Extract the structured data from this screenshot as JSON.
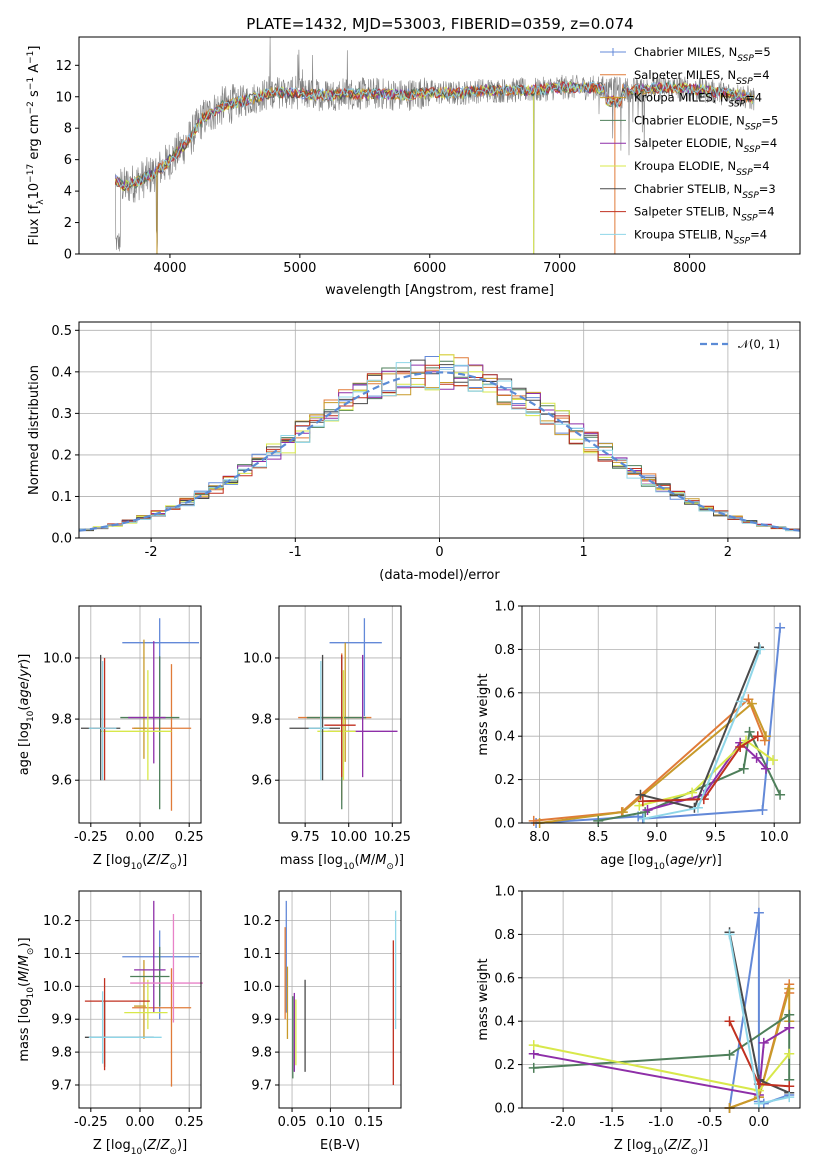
{
  "title": "PLATE=1432, MJD=53003, FIBERID=0359, z=0.074",
  "colors": [
    "#6389d8",
    "#e07b39",
    "#c89a2a",
    "#4e7f5a",
    "#8e2fa8",
    "#d8e84a",
    "#4a4a4a",
    "#c03020",
    "#8fd6e8"
  ],
  "series": [
    {
      "name": "Chabrier MILES, N",
      "n": "5",
      "color": "#6389d8"
    },
    {
      "name": "Salpeter MILES, N",
      "n": "4",
      "color": "#e07b39"
    },
    {
      "name": "Kroupa MILES, N",
      "n": "4",
      "color": "#c89a2a"
    },
    {
      "name": "Chabrier ELODIE, N",
      "n": "5",
      "color": "#4e7f5a"
    },
    {
      "name": "Salpeter ELODIE, N",
      "n": "4",
      "color": "#8e2fa8"
    },
    {
      "name": "Kroupa ELODIE, N",
      "n": "4",
      "color": "#d8e84a"
    },
    {
      "name": "Chabrier STELIB, N",
      "n": "3",
      "color": "#4a4a4a"
    },
    {
      "name": "Salpeter STELIB, N",
      "n": "4",
      "color": "#c03020"
    },
    {
      "name": "Kroupa STELIB, N",
      "n": "4",
      "color": "#8fd6e8"
    }
  ],
  "chart_data": [
    {
      "id": "spectrum",
      "type": "line",
      "xlabel": "wavelength [Angstrom, rest frame]",
      "ylabel": "Flux [f",
      "xlim": [
        3300,
        8850
      ],
      "ylim": [
        0,
        13.8
      ],
      "xticks": [
        4000,
        5000,
        6000,
        7000,
        8000
      ],
      "yticks": [
        0,
        2,
        4,
        6,
        8,
        10,
        12
      ],
      "data_color": "#808080",
      "continuum_x": [
        3580,
        3650,
        3750,
        3850,
        3950,
        4050,
        4150,
        4250,
        4400,
        4600,
        4800,
        5000,
        5200,
        5400,
        5600,
        5800,
        6000,
        6200,
        6400,
        6600,
        6800,
        7000,
        7200,
        7400,
        7600,
        7800,
        8000,
        8200,
        8400,
        8500
      ],
      "continuum_y": [
        4.7,
        4.3,
        4.6,
        5.0,
        5.6,
        6.4,
        7.3,
        8.6,
        9.4,
        9.8,
        10.3,
        10.2,
        10.1,
        10.2,
        10.2,
        10.1,
        10.3,
        10.2,
        10.4,
        10.4,
        10.4,
        10.6,
        10.6,
        10.5,
        10.4,
        10.6,
        10.5,
        10.3,
        10.1,
        9.8
      ]
    },
    {
      "id": "residual_hist",
      "type": "step",
      "xlabel": "(data-model)/error",
      "ylabel": "Normed distribution",
      "xlim": [
        -2.5,
        2.5
      ],
      "ylim": [
        0,
        0.52
      ],
      "xticks": [
        -2,
        -1,
        0,
        1,
        2
      ],
      "yticks": [
        0.0,
        0.1,
        0.2,
        0.3,
        0.4,
        0.5
      ],
      "gaussian_label": "𝒩(0, 1)",
      "gaussian_color": "#5b8bd6",
      "bin_width": 0.1
    },
    {
      "id": "age_vs_Z",
      "type": "errorbar",
      "xlabel": "Z [log",
      "ylabel": "age  [log",
      "xlim": [
        -0.31,
        0.31
      ],
      "ylim": [
        9.46,
        10.17
      ],
      "xticks": [
        -0.25,
        0.0,
        0.25
      ],
      "yticks": [
        9.6,
        9.8,
        10.0
      ],
      "points": [
        {
          "x": 0.1,
          "y": 10.05,
          "xerr": [
            0.19,
            0.2
          ],
          "yerr": [
            0.24,
            0.08
          ]
        },
        {
          "x": 0.16,
          "y": 9.77,
          "xerr": [
            0.2,
            0.1
          ],
          "yerr": [
            0.27,
            0.21
          ]
        },
        {
          "x": 0.02,
          "y": 9.77,
          "xerr": [
            0.05,
            0.01
          ],
          "yerr": [
            0.1,
            0.29
          ]
        },
        {
          "x": 0.1,
          "y": 9.805,
          "xerr": [
            0.2,
            0.1
          ],
          "yerr": [
            0.3,
            0.2
          ]
        },
        {
          "x": 0.07,
          "y": 9.805,
          "xerr": [
            0.13,
            0.06
          ],
          "yerr": [
            0.15,
            0.25
          ]
        },
        {
          "x": 0.04,
          "y": 9.76,
          "xerr": [
            0.24,
            0.12
          ],
          "yerr": [
            0.16,
            0.2
          ]
        },
        {
          "x": -0.2,
          "y": 9.77,
          "xerr": [
            0.1,
            0.1
          ],
          "yerr": [
            0.17,
            0.24
          ]
        },
        {
          "x": -0.18,
          "y": 9.77,
          "xerr": [
            0.06,
            0.05
          ],
          "yerr": [
            0.17,
            0.23
          ]
        },
        {
          "x": -0.19,
          "y": 9.77,
          "xerr": [
            0.07,
            0.07
          ],
          "yerr": [
            0.17,
            0.22
          ]
        }
      ]
    },
    {
      "id": "age_vs_mass",
      "type": "errorbar",
      "xlabel": "mass [log",
      "ylabel": "",
      "xlim": [
        9.6,
        10.3
      ],
      "ylim": [
        9.46,
        10.17
      ],
      "xticks": [
        9.75,
        10.0,
        10.25
      ],
      "yticks": [
        9.6,
        9.8,
        10.0
      ],
      "points": [
        {
          "x": 10.09,
          "y": 10.05,
          "xerr": [
            0.2,
            0.1
          ],
          "yerr": [
            0.24,
            0.08
          ]
        },
        {
          "x": 9.96,
          "y": 9.805,
          "xerr": [
            0.25,
            0.17
          ],
          "yerr": [
            0.27,
            0.21
          ]
        },
        {
          "x": 9.98,
          "y": 9.76,
          "xerr": [
            0.03,
            0.03
          ],
          "yerr": [
            0.1,
            0.29
          ]
        },
        {
          "x": 9.96,
          "y": 9.805,
          "xerr": [
            0.2,
            0.14
          ],
          "yerr": [
            0.3,
            0.2
          ]
        },
        {
          "x": 10.08,
          "y": 9.76,
          "xerr": [
            0.2,
            0.2
          ],
          "yerr": [
            0.15,
            0.25
          ]
        },
        {
          "x": 9.97,
          "y": 9.76,
          "xerr": [
            0.15,
            0.07
          ],
          "yerr": [
            0.16,
            0.2
          ]
        },
        {
          "x": 9.85,
          "y": 9.77,
          "xerr": [
            0.19,
            0.1
          ],
          "yerr": [
            0.17,
            0.24
          ]
        },
        {
          "x": 9.96,
          "y": 9.78,
          "xerr": [
            0.1,
            0.08
          ],
          "yerr": [
            0.17,
            0.23
          ]
        },
        {
          "x": 9.84,
          "y": 9.77,
          "xerr": [
            0.07,
            0.05
          ],
          "yerr": [
            0.17,
            0.22
          ]
        }
      ]
    },
    {
      "id": "massweight_vs_age",
      "type": "line",
      "xlabel": "age  [log",
      "ylabel": "mass weight",
      "xlim": [
        7.85,
        10.22
      ],
      "ylim": [
        0,
        1.0
      ],
      "xticks": [
        8.0,
        8.5,
        9.0,
        9.5,
        10.0
      ],
      "yticks": [
        0.0,
        0.2,
        0.4,
        0.6,
        0.8,
        1.0
      ],
      "series": [
        {
          "x": [
            7.97,
            8.84,
            8.88,
            9.9,
            10.05
          ],
          "y": [
            0.0,
            0.03,
            0.02,
            0.06,
            0.9
          ]
        },
        {
          "x": [
            7.95,
            8.7,
            9.78,
            9.92
          ],
          "y": [
            0.01,
            0.05,
            0.57,
            0.38
          ]
        },
        {
          "x": [
            8.0,
            8.71,
            9.81,
            9.93
          ],
          "y": [
            0.0,
            0.05,
            0.55,
            0.4
          ]
        },
        {
          "x": [
            8.5,
            8.9,
            9.74,
            9.79,
            10.05
          ],
          "y": [
            0.01,
            0.05,
            0.25,
            0.42,
            0.13
          ]
        },
        {
          "x": [
            8.92,
            9.4,
            9.71,
            9.85,
            9.93
          ],
          "y": [
            0.06,
            0.13,
            0.37,
            0.3,
            0.25
          ]
        },
        {
          "x": [
            8.85,
            9.3,
            9.76,
            9.99
          ],
          "y": [
            0.08,
            0.14,
            0.38,
            0.29
          ]
        },
        {
          "x": [
            8.86,
            9.32,
            9.87
          ],
          "y": [
            0.13,
            0.07,
            0.81
          ]
        },
        {
          "x": [
            8.88,
            9.4,
            9.71,
            9.86
          ],
          "y": [
            0.1,
            0.11,
            0.35,
            0.4
          ]
        },
        {
          "x": [
            8.89,
            9.35,
            9.72,
            9.88
          ],
          "y": [
            0.02,
            0.07,
            0.56,
            0.8
          ]
        }
      ]
    },
    {
      "id": "mass_vs_Z",
      "type": "errorbar",
      "xlabel": "Z [log",
      "ylabel": "mass [log",
      "xlim": [
        -0.31,
        0.31
      ],
      "ylim": [
        9.63,
        10.29
      ],
      "xticks": [
        -0.25,
        0.0,
        0.25
      ],
      "yticks": [
        9.7,
        9.8,
        9.9,
        10.0,
        10.1,
        10.2
      ],
      "points": [
        {
          "x": 0.1,
          "y": 10.09,
          "xerr": [
            0.19,
            0.2
          ],
          "yerr": [
            0.19,
            0.08
          ]
        },
        {
          "x": 0.16,
          "y": 9.935,
          "xerr": [
            0.2,
            0.1
          ],
          "yerr": [
            0.24,
            0.12
          ]
        },
        {
          "x": 0.02,
          "y": 9.94,
          "xerr": [
            0.05,
            0.01
          ],
          "yerr": [
            0.1,
            0.14
          ]
        },
        {
          "x": 0.1,
          "y": 10.03,
          "xerr": [
            0.15,
            0.05
          ],
          "yerr": [
            0.09,
            0.09
          ]
        },
        {
          "x": 0.07,
          "y": 10.05,
          "xerr": [
            0.1,
            0.06
          ],
          "yerr": [
            0.13,
            0.21
          ]
        },
        {
          "x": 0.04,
          "y": 9.92,
          "xerr": [
            0.12,
            0.1
          ],
          "yerr": [
            0.05,
            0.1
          ]
        },
        {
          "x": -0.18,
          "y": 9.845,
          "xerr": [
            0.1,
            0.25
          ],
          "yerr": [
            0.09,
            0.11
          ]
        },
        {
          "x": -0.18,
          "y": 9.955,
          "xerr": [
            0.1,
            0.23
          ],
          "yerr": [
            0.21,
            0.07
          ]
        },
        {
          "x": -0.19,
          "y": 9.845,
          "xerr": [
            0.07,
            0.3
          ],
          "yerr": [
            0.08,
            0.14
          ]
        },
        {
          "x": 0.17,
          "y": 10.01,
          "xerr": [
            0.22,
            0.15
          ],
          "yerr": [
            0.12,
            0.21
          ]
        }
      ]
    },
    {
      "id": "mass_vs_ebv",
      "type": "errorbar",
      "xlabel": "E(B-V)",
      "ylabel": "",
      "xlim": [
        0.033,
        0.192
      ],
      "ylim": [
        9.63,
        10.29
      ],
      "xticks": [
        0.05,
        0.1,
        0.15
      ],
      "yticks": [
        9.7,
        9.8,
        9.9,
        10.0,
        10.1,
        10.2
      ],
      "points": [
        {
          "x": 0.0425,
          "y": 10.05,
          "yerr": [
            0.13,
            0.21
          ]
        },
        {
          "x": 0.041,
          "y": 10.02,
          "yerr": [
            0.12,
            0.16
          ]
        },
        {
          "x": 0.044,
          "y": 9.94,
          "yerr": [
            0.1,
            0.12
          ]
        },
        {
          "x": 0.051,
          "y": 9.82,
          "yerr": [
            0.1,
            0.15
          ]
        },
        {
          "x": 0.053,
          "y": 9.88,
          "yerr": [
            0.14,
            0.1
          ]
        },
        {
          "x": 0.055,
          "y": 9.84,
          "yerr": [
            0.08,
            0.12
          ]
        },
        {
          "x": 0.067,
          "y": 9.88,
          "yerr": [
            0.14,
            0.14
          ]
        },
        {
          "x": 0.182,
          "y": 9.92,
          "yerr": [
            0.22,
            0.22
          ]
        },
        {
          "x": 0.185,
          "y": 10.05,
          "yerr": [
            0.18,
            0.18
          ]
        }
      ]
    },
    {
      "id": "massweight_vs_Z",
      "type": "line",
      "xlabel": "Z [log",
      "ylabel": "mass weight",
      "xlim": [
        -2.42,
        0.42
      ],
      "ylim": [
        0,
        1.0
      ],
      "xticks": [
        -2.0,
        -1.5,
        -1.0,
        -0.5,
        0.0
      ],
      "yticks": [
        0.0,
        0.2,
        0.4,
        0.6,
        0.8,
        1.0
      ],
      "series": [
        {
          "x": [
            -0.3,
            0.0,
            0.0,
            0.05,
            0.31
          ],
          "y": [
            0.0,
            0.9,
            0.03,
            0.02,
            0.06
          ]
        },
        {
          "x": [
            -0.3,
            0.0,
            0.31,
            0.31
          ],
          "y": [
            0.0,
            0.05,
            0.57,
            0.53
          ]
        },
        {
          "x": [
            -0.3,
            0.0,
            0.31,
            0.31
          ],
          "y": [
            0.0,
            0.05,
            0.55,
            0.4
          ]
        },
        {
          "x": [
            -2.3,
            -0.3,
            0.31,
            0.31
          ],
          "y": [
            0.185,
            0.245,
            0.43,
            0.13
          ]
        },
        {
          "x": [
            -2.3,
            0.0,
            0.05,
            0.31
          ],
          "y": [
            0.25,
            0.06,
            0.3,
            0.37
          ]
        },
        {
          "x": [
            -2.3,
            0.0,
            0.31
          ],
          "y": [
            0.29,
            0.08,
            0.25
          ]
        },
        {
          "x": [
            -0.3,
            0.0,
            0.31
          ],
          "y": [
            0.81,
            0.13,
            0.07
          ]
        },
        {
          "x": [
            -0.3,
            0.0,
            0.31
          ],
          "y": [
            0.4,
            0.11,
            0.1
          ]
        },
        {
          "x": [
            -0.3,
            0.0,
            0.31
          ],
          "y": [
            0.8,
            0.02,
            0.05
          ]
        }
      ]
    }
  ]
}
